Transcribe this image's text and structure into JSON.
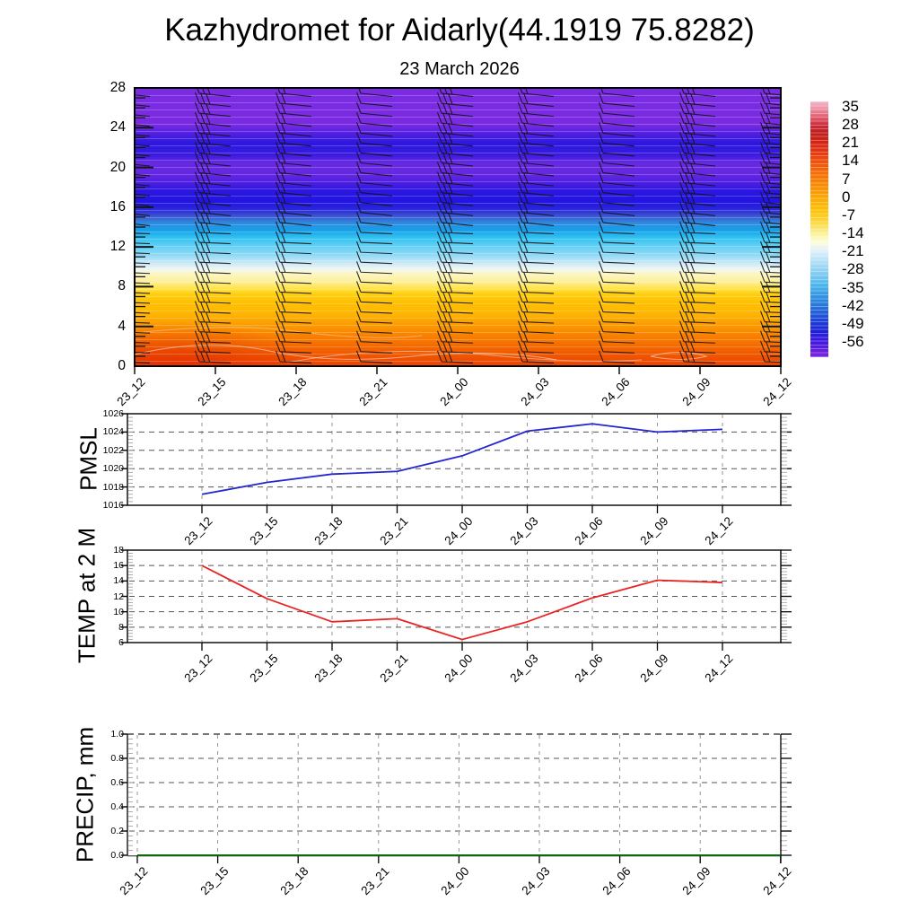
{
  "header": {
    "title": "Kazhydromet for Aidarly(44.1919 75.8282)",
    "subtitle": "23 March 2026"
  },
  "time_labels": [
    "23_12",
    "23_15",
    "23_18",
    "23_21",
    "24_00",
    "24_03",
    "24_06",
    "24_09",
    "24_12"
  ],
  "cross_section": {
    "y_ticks": [
      "0",
      "4",
      "8",
      "12",
      "16",
      "20",
      "24",
      "28"
    ],
    "colorbar_labels": [
      "35",
      "28",
      "21",
      "14",
      "7",
      "0",
      "-7",
      "-14",
      "-21",
      "-28",
      "-35",
      "-42",
      "-49",
      "-56"
    ],
    "wind_barbs": "wind barb columns at each 3-hourly time step, ~28 vertical levels each"
  },
  "chart_data": [
    {
      "type": "heatmap",
      "name": "temperature height-time cross section",
      "x": [
        "23_12",
        "23_15",
        "23_18",
        "23_21",
        "24_00",
        "24_03",
        "24_06",
        "24_09",
        "24_12"
      ],
      "ylim": [
        0,
        28
      ],
      "colorbar_ticks": [
        35,
        28,
        21,
        14,
        7,
        0,
        -7,
        -14,
        -21,
        -28,
        -35,
        -42,
        -49,
        -56
      ],
      "surface_to_top_profile": [
        [
          0,
          21
        ],
        [
          4,
          13
        ],
        [
          8,
          7
        ],
        [
          10,
          2
        ],
        [
          11.5,
          -7
        ],
        [
          12,
          -14
        ],
        [
          14,
          -21
        ],
        [
          15,
          -26
        ],
        [
          16,
          -31
        ],
        [
          17,
          -38
        ],
        [
          18,
          -46
        ],
        [
          21,
          -50
        ],
        [
          24,
          -52
        ],
        [
          28,
          -55
        ]
      ],
      "palette_warm_to_cold": [
        "#ec4100",
        "#f77500",
        "#fca301",
        "#ffc002",
        "#ffe44a",
        "#fcf6bb",
        "#cde9f8",
        "#8ed9f5",
        "#33c3f2",
        "#169fe8",
        "#2214e2",
        "#2c17de",
        "#6729e1",
        "#7b2ce2"
      ]
    },
    {
      "type": "line",
      "name": "PMSL",
      "ylabel": "PMSL",
      "x": [
        "23_12",
        "23_15",
        "23_18",
        "23_21",
        "24_00",
        "24_03",
        "24_06",
        "24_09",
        "24_12"
      ],
      "values": [
        1017.2,
        1018.5,
        1019.4,
        1019.7,
        1021.4,
        1024.1,
        1024.9,
        1024.0,
        1024.3
      ],
      "ylim": [
        1016,
        1026
      ],
      "yticks": [
        1016,
        1018,
        1020,
        1022,
        1024,
        1026
      ],
      "ytick_labels": [
        "1016",
        "1018",
        "1020",
        "1022",
        "1024",
        "1026"
      ],
      "color": "#2626cf",
      "grid": true
    },
    {
      "type": "line",
      "name": "TEMP at 2 M",
      "ylabel": "TEMP at 2 M",
      "x": [
        "23_12",
        "23_15",
        "23_18",
        "23_21",
        "24_00",
        "24_03",
        "24_06",
        "24_09",
        "24_12"
      ],
      "values": [
        16.0,
        11.7,
        8.7,
        9.1,
        6.4,
        8.7,
        11.8,
        14.1,
        13.8
      ],
      "ylim": [
        6,
        18
      ],
      "yticks": [
        6,
        8,
        10,
        12,
        14,
        16,
        18
      ],
      "ytick_labels": [
        "6",
        "8",
        "10",
        "12",
        "14",
        "16",
        "18"
      ],
      "color": "#ea2424",
      "grid": true
    },
    {
      "type": "line",
      "name": "PRECIP, mm",
      "ylabel": "PRECIP, mm",
      "x": [
        "23_12",
        "23_15",
        "23_18",
        "23_21",
        "24_00",
        "24_03",
        "24_06",
        "24_09",
        "24_12"
      ],
      "values": [
        0,
        0,
        0,
        0,
        0,
        0,
        0,
        0,
        0
      ],
      "ylim": [
        0.0,
        1.0
      ],
      "yticks": [
        0.0,
        0.2,
        0.4,
        0.6,
        0.8,
        1.0
      ],
      "ytick_labels": [
        "0.0",
        "0.2",
        "0.4",
        "0.6",
        "0.8",
        "1.0"
      ],
      "color": "#0b6b0b",
      "grid": true
    }
  ]
}
